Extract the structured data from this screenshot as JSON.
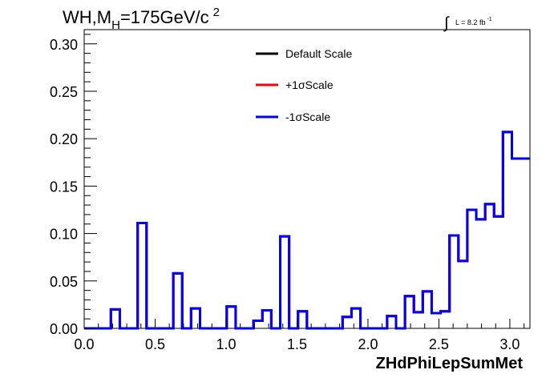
{
  "header": {
    "title_main": "WH,M",
    "title_sub": "H",
    "title_rest": "=175GeV/c",
    "title_sup": "2",
    "lumi_integral": "∫",
    "lumi_text": "L = 8.2 fb",
    "lumi_sup": "-1"
  },
  "chart_data": {
    "type": "line",
    "style": "step histogram",
    "title": "WH,M_H=175GeV/c^2",
    "xlabel": "ZHdPhiLepSumMet",
    "ylabel": "",
    "xlim": [
      0,
      3.1416
    ],
    "ylim": [
      0,
      0.315
    ],
    "grid": false,
    "legend_position": "top-center",
    "x_ticks": [
      "0.0",
      "0.5",
      "1.0",
      "1.5",
      "2.0",
      "2.5",
      "3.0"
    ],
    "x_tick_values": [
      0,
      0.5,
      1.0,
      1.5,
      2.0,
      2.5,
      3.0
    ],
    "y_ticks": [
      "0.00",
      "0.05",
      "0.10",
      "0.15",
      "0.20",
      "0.25",
      "0.30"
    ],
    "y_tick_values": [
      0,
      0.05,
      0.1,
      0.15,
      0.2,
      0.25,
      0.3
    ],
    "bin_width": 0.0628,
    "bin_values": [
      0,
      0,
      0,
      0.02,
      0,
      0,
      0.111,
      0,
      0,
      0,
      0.058,
      0,
      0.021,
      0,
      0,
      0,
      0.023,
      0,
      0,
      0.008,
      0.019,
      0,
      0.097,
      0,
      0.018,
      0,
      0,
      0,
      0,
      0.012,
      0.021,
      0,
      0,
      0,
      0.013,
      0,
      0.034,
      0.017,
      0.039,
      0.016,
      0.018,
      0.098,
      0.071,
      0.125,
      0.115,
      0.131,
      0.118,
      0.207,
      0.179,
      0.179
    ],
    "series": [
      {
        "name": "Default Scale",
        "color": "#000000"
      },
      {
        "name": "+1σScale",
        "color": "#ff0000"
      },
      {
        "name": "-1σScale",
        "color": "#0000ff"
      }
    ]
  }
}
